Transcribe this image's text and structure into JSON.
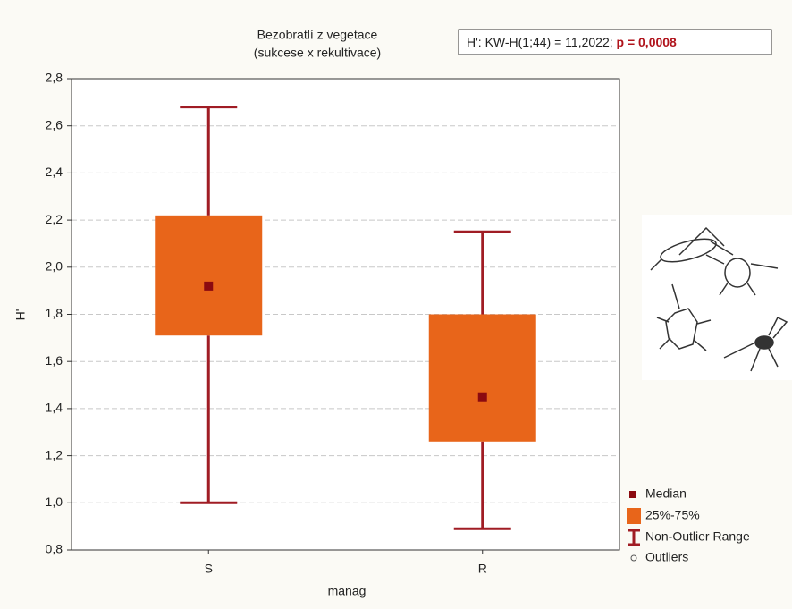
{
  "chart_data": {
    "type": "box",
    "title": "Bezobratlí z vegetace",
    "subtitle": "(sukcese x rekultivace)",
    "annotation": {
      "text": "H':  KW-H(1;44) = 11,2022; ",
      "p": "p = 0,0008"
    },
    "x_label": "manag",
    "y_label": "H'",
    "categories": [
      "S",
      "R"
    ],
    "boxes": [
      {
        "median": 1.92,
        "q1": 1.71,
        "q3": 2.22,
        "min": 1.0,
        "max": 2.68
      },
      {
        "median": 1.45,
        "q1": 1.26,
        "q3": 1.8,
        "min": 0.89,
        "max": 2.15
      }
    ],
    "box_color": "#e8651a",
    "whisker_color": "#a01c24",
    "median_color": "#8b0a10",
    "ylim": [
      0.8,
      2.8
    ],
    "yticks": [
      {
        "value": 0.8,
        "label": "0,8"
      },
      {
        "value": 1.0,
        "label": "1,0"
      },
      {
        "value": 1.2,
        "label": "1,2"
      },
      {
        "value": 1.4,
        "label": "1,4"
      },
      {
        "value": 1.6,
        "label": "1,6"
      },
      {
        "value": 1.8,
        "label": "1,8"
      },
      {
        "value": 2.0,
        "label": "2,0"
      },
      {
        "value": 2.2,
        "label": "2,2"
      },
      {
        "value": 2.4,
        "label": "2,4"
      },
      {
        "value": 2.6,
        "label": "2,6"
      },
      {
        "value": 2.8,
        "label": "2,8"
      }
    ],
    "grid": true,
    "legend": [
      "Median",
      "25%-75%",
      "Non-Outlier Range",
      "Outliers"
    ]
  }
}
